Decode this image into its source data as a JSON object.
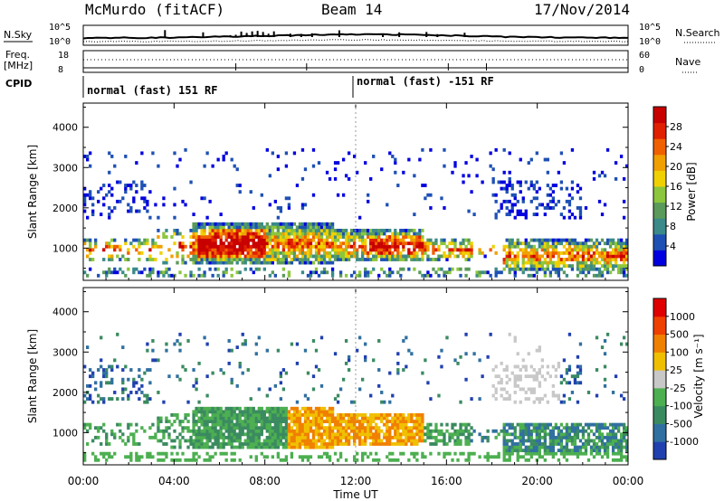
{
  "header": {
    "station": "McMurdo (fitACF)",
    "beam": "Beam 14",
    "date": "17/Nov/2014"
  },
  "noise_panel": {
    "left_label": "N.Sky",
    "right_label": "N.Search",
    "ticks_left": [
      "10^5",
      "10^0"
    ],
    "ticks_right": [
      "10^5",
      "10^0"
    ]
  },
  "freq_panel": {
    "left_label_1": "Freq.",
    "left_label_2": "[MHz]",
    "right_label": "Nave",
    "ticks_left": [
      "18",
      "8"
    ],
    "ticks_right": [
      "60",
      "0"
    ]
  },
  "cpid": {
    "label": "CPID",
    "segments": [
      "normal (fast) 151 RF",
      "normal (fast) -151 RF"
    ]
  },
  "power_panel": {
    "ylabel": "Slant Range [km]",
    "colorbar_label": "Power [dB]",
    "colorbar_ticks": [
      "28",
      "24",
      "20",
      "16",
      "12",
      "8",
      "4"
    ],
    "colors": [
      "#0000e0",
      "#1e50b4",
      "#3a8a8a",
      "#5a9a5a",
      "#8cc63c",
      "#f0d000",
      "#f0a000",
      "#f06000",
      "#e02000",
      "#c80000"
    ]
  },
  "velocity_panel": {
    "ylabel": "Slant Range [km]",
    "colorbar_label": "Velocity [m s⁻¹]",
    "colorbar_ticks": [
      "1000",
      "500",
      "100",
      "25",
      "-25",
      "-100",
      "-500",
      "-1000"
    ],
    "colors": [
      "#2040b0",
      "#3070a0",
      "#3a8a60",
      "#4caf50",
      "#c8c8c8",
      "#f0c000",
      "#f08000",
      "#f04000",
      "#e00000"
    ]
  },
  "xaxis": {
    "label": "Time UT",
    "ticks": [
      "00:00",
      "04:00",
      "08:00",
      "12:00",
      "16:00",
      "20:00",
      "00:00"
    ]
  },
  "chart_data": [
    {
      "type": "heatmap",
      "title": "Power",
      "xlabel": "Time UT",
      "ylabel": "Slant Range [km]",
      "xlim": [
        "00:00",
        "24:00"
      ],
      "ylim": [
        200,
        4600
      ],
      "y_ticks": [
        1000,
        2000,
        3000,
        4000
      ],
      "z_label": "Power [dB]",
      "zlim": [
        0,
        30
      ]
    },
    {
      "type": "heatmap",
      "title": "Velocity",
      "xlabel": "Time UT",
      "ylabel": "Slant Range [km]",
      "xlim": [
        "00:00",
        "24:00"
      ],
      "ylim": [
        200,
        4600
      ],
      "y_ticks": [
        1000,
        2000,
        3000,
        4000
      ],
      "z_label": "Velocity [m s-1]",
      "zlim": [
        -1000,
        1000
      ]
    }
  ]
}
